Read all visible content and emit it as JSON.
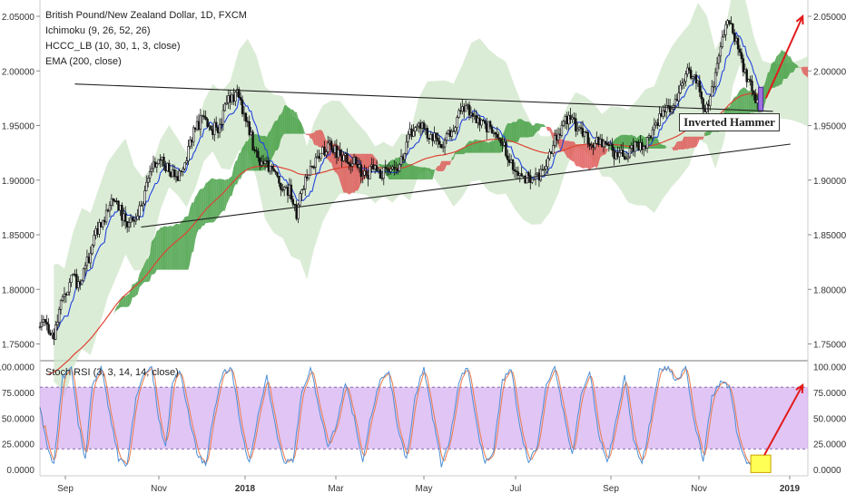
{
  "chart_data": [
    {
      "type": "candlestick",
      "title": "British Pound/New Zealand Dollar, 1D, FXCM",
      "indicators": [
        "Ichimoku (9, 26, 52, 26)",
        "HCCC_LB (10, 30, 1, 3, close)",
        "EMA (200, close)"
      ],
      "y_ticks": [
        "2.05000",
        "2.00000",
        "1.95000",
        "1.90000",
        "1.85000",
        "1.80000",
        "1.75000"
      ],
      "ylim": [
        1.745,
        2.055
      ],
      "x_ticks": [
        "Sep",
        "Nov",
        "2018",
        "Mar",
        "May",
        "Jul",
        "Sep",
        "Nov",
        "2019"
      ],
      "price_path": [
        [
          0,
          1.77
        ],
        [
          4,
          1.768
        ],
        [
          8,
          1.76
        ],
        [
          13,
          1.79
        ],
        [
          18,
          1.81
        ],
        [
          23,
          1.805
        ],
        [
          28,
          1.83
        ],
        [
          33,
          1.855
        ],
        [
          38,
          1.87
        ],
        [
          43,
          1.885
        ],
        [
          48,
          1.865
        ],
        [
          53,
          1.86
        ],
        [
          58,
          1.875
        ],
        [
          63,
          1.905
        ],
        [
          68,
          1.922
        ],
        [
          73,
          1.912
        ],
        [
          78,
          1.9
        ],
        [
          83,
          1.918
        ],
        [
          88,
          1.945
        ],
        [
          93,
          1.957
        ],
        [
          98,
          1.946
        ],
        [
          103,
          1.95
        ],
        [
          108,
          1.973
        ],
        [
          113,
          1.978
        ],
        [
          118,
          1.958
        ],
        [
          123,
          1.925
        ],
        [
          128,
          1.915
        ],
        [
          133,
          1.912
        ],
        [
          138,
          1.895
        ],
        [
          143,
          1.89
        ],
        [
          147,
          1.87
        ],
        [
          151,
          1.895
        ],
        [
          156,
          1.915
        ],
        [
          161,
          1.925
        ],
        [
          166,
          1.93
        ],
        [
          171,
          1.925
        ],
        [
          176,
          1.92
        ],
        [
          181,
          1.915
        ],
        [
          186,
          1.905
        ],
        [
          191,
          1.91
        ],
        [
          196,
          1.905
        ],
        [
          201,
          1.915
        ],
        [
          206,
          1.912
        ],
        [
          211,
          1.94
        ],
        [
          216,
          1.95
        ],
        [
          221,
          1.945
        ],
        [
          226,
          1.94
        ],
        [
          231,
          1.932
        ],
        [
          236,
          1.945
        ],
        [
          241,
          1.962
        ],
        [
          246,
          1.965
        ],
        [
          251,
          1.955
        ],
        [
          256,
          1.95
        ],
        [
          261,
          1.948
        ],
        [
          266,
          1.93
        ],
        [
          271,
          1.915
        ],
        [
          276,
          1.905
        ],
        [
          281,
          1.9
        ],
        [
          286,
          1.905
        ],
        [
          291,
          1.918
        ],
        [
          296,
          1.94
        ],
        [
          301,
          1.955
        ],
        [
          306,
          1.952
        ],
        [
          311,
          1.945
        ],
        [
          316,
          1.932
        ],
        [
          321,
          1.935
        ],
        [
          326,
          1.93
        ],
        [
          331,
          1.922
        ],
        [
          336,
          1.925
        ],
        [
          341,
          1.93
        ],
        [
          346,
          1.928
        ],
        [
          351,
          1.945
        ],
        [
          356,
          1.958
        ],
        [
          361,
          1.968
        ],
        [
          366,
          1.978
        ],
        [
          371,
          2.0
        ],
        [
          376,
          1.992
        ],
        [
          381,
          1.965
        ],
        [
          386,
          1.985
        ],
        [
          391,
          2.03
        ],
        [
          395,
          2.045
        ],
        [
          399,
          2.025
        ],
        [
          403,
          2.0
        ],
        [
          407,
          1.985
        ],
        [
          411,
          1.97
        ],
        [
          414,
          1.963
        ]
      ],
      "lines": [
        {
          "name": "trendline-upper",
          "from": [
            20,
            1.988
          ],
          "to": [
            420,
            1.963
          ]
        },
        {
          "name": "trendline-lower",
          "from": [
            58,
            1.857
          ],
          "to": [
            430,
            1.933
          ]
        }
      ],
      "annotation": "Inverted Hammer",
      "arrow_target": [
        437,
        2.05
      ]
    },
    {
      "type": "line",
      "title": "Stoch RSI (3, 3, 14, 14, close)",
      "y_ticks": [
        "100.0000",
        "75.0000",
        "50.0000",
        "25.0000",
        "0.0000"
      ],
      "ylim": [
        -5,
        105
      ],
      "bands": [
        20,
        80
      ],
      "k_path": [
        [
          0,
          60
        ],
        [
          4,
          25
        ],
        [
          8,
          5
        ],
        [
          13,
          90
        ],
        [
          18,
          98
        ],
        [
          22,
          45
        ],
        [
          26,
          10
        ],
        [
          30,
          80
        ],
        [
          35,
          100
        ],
        [
          40,
          55
        ],
        [
          45,
          10
        ],
        [
          50,
          5
        ],
        [
          55,
          70
        ],
        [
          60,
          95
        ],
        [
          64,
          100
        ],
        [
          68,
          50
        ],
        [
          72,
          20
        ],
        [
          76,
          85
        ],
        [
          80,
          98
        ],
        [
          85,
          55
        ],
        [
          90,
          15
        ],
        [
          95,
          5
        ],
        [
          100,
          60
        ],
        [
          105,
          95
        ],
        [
          110,
          98
        ],
        [
          115,
          40
        ],
        [
          120,
          5
        ],
        [
          125,
          55
        ],
        [
          130,
          90
        ],
        [
          135,
          40
        ],
        [
          140,
          5
        ],
        [
          145,
          10
        ],
        [
          150,
          75
        ],
        [
          155,
          98
        ],
        [
          160,
          60
        ],
        [
          165,
          20
        ],
        [
          170,
          45
        ],
        [
          175,
          85
        ],
        [
          180,
          50
        ],
        [
          185,
          10
        ],
        [
          190,
          55
        ],
        [
          195,
          90
        ],
        [
          200,
          95
        ],
        [
          205,
          40
        ],
        [
          210,
          10
        ],
        [
          215,
          70
        ],
        [
          220,
          100
        ],
        [
          225,
          50
        ],
        [
          230,
          5
        ],
        [
          235,
          30
        ],
        [
          240,
          85
        ],
        [
          245,
          100
        ],
        [
          250,
          45
        ],
        [
          255,
          5
        ],
        [
          260,
          20
        ],
        [
          265,
          85
        ],
        [
          270,
          98
        ],
        [
          275,
          40
        ],
        [
          280,
          5
        ],
        [
          285,
          25
        ],
        [
          290,
          80
        ],
        [
          295,
          100
        ],
        [
          300,
          55
        ],
        [
          305,
          15
        ],
        [
          310,
          70
        ],
        [
          315,
          95
        ],
        [
          320,
          35
        ],
        [
          325,
          5
        ],
        [
          330,
          45
        ],
        [
          335,
          90
        ],
        [
          340,
          30
        ],
        [
          345,
          5
        ],
        [
          350,
          50
        ],
        [
          355,
          95
        ],
        [
          360,
          100
        ],
        [
          365,
          85
        ],
        [
          370,
          100
        ],
        [
          375,
          45
        ],
        [
          380,
          10
        ],
        [
          385,
          70
        ],
        [
          390,
          85
        ],
        [
          395,
          80
        ],
        [
          400,
          30
        ],
        [
          405,
          5
        ],
        [
          410,
          2
        ],
        [
          414,
          3
        ]
      ],
      "highlight_x": 413,
      "arrow_target": [
        437,
        82
      ]
    }
  ],
  "colors": {
    "candle": "#111111",
    "tenkan": "#2244dd",
    "ema": "#dd4433",
    "kumo_bull": "#3a9a3a",
    "kumo_bear": "#e05050",
    "hccc_band": "#cfe6c8",
    "rsi_fill": "#cfa6ef",
    "rsi_k": "#4c8fd6",
    "rsi_d": "#ec7a4a",
    "arrow": "#e31a1a",
    "marker": "#ffff55"
  }
}
